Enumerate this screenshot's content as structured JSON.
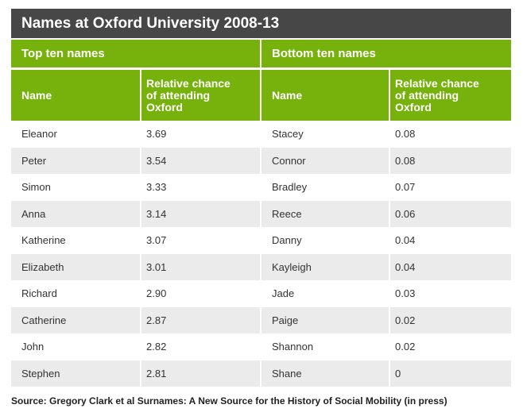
{
  "title": "Names at Oxford University 2008-13",
  "group_headers": {
    "left": "Top ten names",
    "right": "Bottom ten names"
  },
  "column_headers": {
    "name_left": "Name",
    "chance_left": "Relative chance\nof attending\nOxford",
    "name_right": "Name",
    "chance_right": "Relative chance\nof attending\nOxford"
  },
  "top_ten": [
    {
      "name": "Eleanor",
      "value": "3.69"
    },
    {
      "name": "Peter",
      "value": "3.54"
    },
    {
      "name": "Simon",
      "value": "3.33"
    },
    {
      "name": "Anna",
      "value": "3.14"
    },
    {
      "name": "Katherine",
      "value": "3.07"
    },
    {
      "name": "Elizabeth",
      "value": "3.01"
    },
    {
      "name": "Richard",
      "value": "2.90"
    },
    {
      "name": "Catherine",
      "value": "2.87"
    },
    {
      "name": "John",
      "value": "2.82"
    },
    {
      "name": "Stephen",
      "value": "2.81"
    }
  ],
  "bottom_ten": [
    {
      "name": "Stacey",
      "value": "0.08"
    },
    {
      "name": "Connor",
      "value": "0.08"
    },
    {
      "name": "Bradley",
      "value": "0.07"
    },
    {
      "name": "Reece",
      "value": "0.06"
    },
    {
      "name": "Danny",
      "value": "0.04"
    },
    {
      "name": "Kayleigh",
      "value": "0.04"
    },
    {
      "name": "Jade",
      "value": "0.03"
    },
    {
      "name": "Paige",
      "value": "0.02"
    },
    {
      "name": "Shannon",
      "value": "0.02"
    },
    {
      "name": "Shane",
      "value": "0"
    }
  ],
  "source": "Source: Gregory Clark et al Surnames: A New Source for the History of Social Mobility (in press)",
  "colors": {
    "title_bar_bg": "#474747",
    "green": "#76B20B",
    "stripe": "#EBEBEB",
    "text": "#333333"
  },
  "chart_data": {
    "type": "table",
    "title": "Names at Oxford University 2008-13",
    "sections": [
      {
        "label": "Top ten names",
        "columns": [
          "Name",
          "Relative chance of attending Oxford"
        ],
        "rows": [
          [
            "Eleanor",
            3.69
          ],
          [
            "Peter",
            3.54
          ],
          [
            "Simon",
            3.33
          ],
          [
            "Anna",
            3.14
          ],
          [
            "Katherine",
            3.07
          ],
          [
            "Elizabeth",
            3.01
          ],
          [
            "Richard",
            2.9
          ],
          [
            "Catherine",
            2.87
          ],
          [
            "John",
            2.82
          ],
          [
            "Stephen",
            2.81
          ]
        ]
      },
      {
        "label": "Bottom ten names",
        "columns": [
          "Name",
          "Relative chance of attending Oxford"
        ],
        "rows": [
          [
            "Stacey",
            0.08
          ],
          [
            "Connor",
            0.08
          ],
          [
            "Bradley",
            0.07
          ],
          [
            "Reece",
            0.06
          ],
          [
            "Danny",
            0.04
          ],
          [
            "Kayleigh",
            0.04
          ],
          [
            "Jade",
            0.03
          ],
          [
            "Paige",
            0.02
          ],
          [
            "Shannon",
            0.02
          ],
          [
            "Shane",
            0
          ]
        ]
      }
    ],
    "source": "Source: Gregory Clark et al Surnames: A New Source for the History of Social Mobility (in press)"
  }
}
